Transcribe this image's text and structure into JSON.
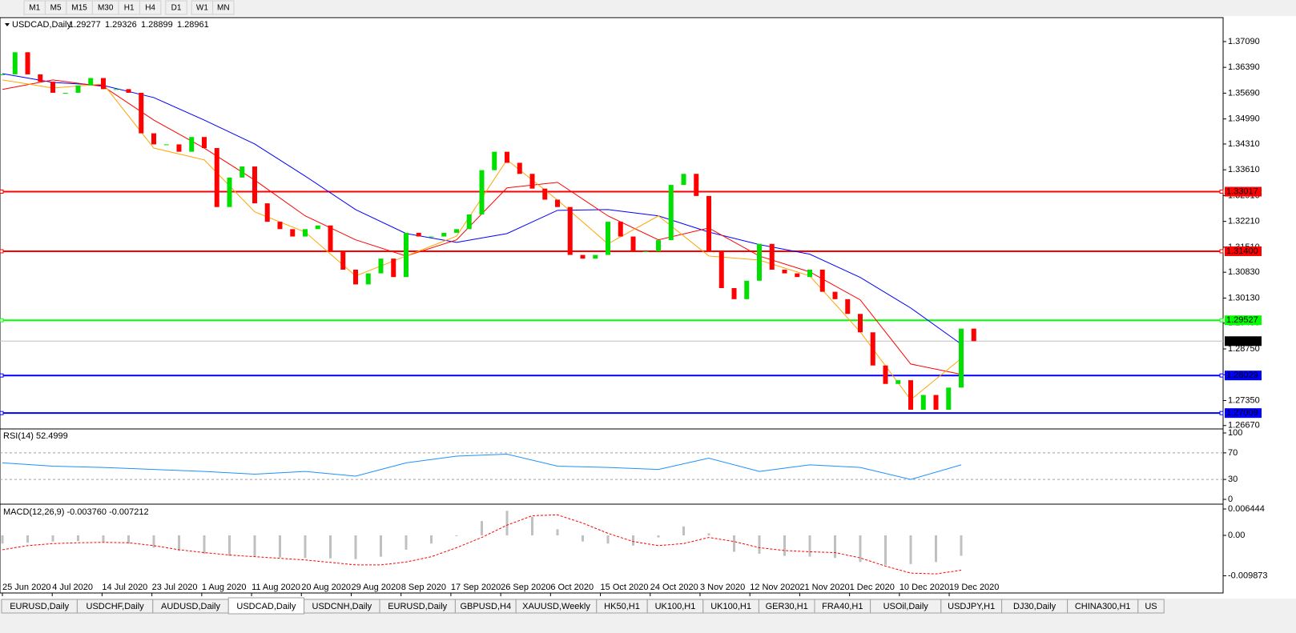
{
  "toolbar": [
    "M1",
    "M5",
    "M15",
    "M30",
    "H1",
    "H4",
    "D1",
    "W1",
    "MN"
  ],
  "tabs": [
    "EURUSD,Daily",
    "USDCHF,Daily",
    "AUDUSD,Daily",
    "USDCAD,Daily",
    "USDCNH,Daily",
    "EURUSD,Daily",
    "GBPUSD,H4",
    "XAUUSD,Weekly",
    "HK50,H1",
    "UK100,H1",
    "UK100,H1",
    "GER30,H1",
    "FRA40,H1",
    "USOil,Daily",
    "USDJPY,H1",
    "DJ30,Daily",
    "CHINA300,H1",
    "US"
  ],
  "active_tab": 3,
  "chart_data": [
    {
      "type": "candlestick",
      "title": "USDCAD,Daily",
      "header_values": [
        1.29277,
        1.29326,
        1.28899,
        1.28961
      ],
      "up_color": "#00e000",
      "down_color": "#ff0000",
      "closes": [
        1.362,
        1.368,
        1.362,
        1.36,
        1.357,
        1.357,
        1.359,
        1.361,
        1.358,
        1.358,
        1.357,
        1.346,
        1.343,
        1.343,
        1.341,
        1.345,
        1.342,
        1.326,
        1.334,
        1.337,
        1.327,
        1.322,
        1.32,
        1.318,
        1.32,
        1.321,
        1.314,
        1.309,
        1.305,
        1.308,
        1.312,
        1.307,
        1.319,
        1.318,
        1.318,
        1.319,
        1.32,
        1.324,
        1.336,
        1.341,
        1.338,
        1.335,
        1.331,
        1.328,
        1.326,
        1.313,
        1.312,
        1.313,
        1.322,
        1.318,
        1.314,
        1.314,
        1.317,
        1.332,
        1.335,
        1.329,
        1.314,
        1.304,
        1.301,
        1.306,
        1.316,
        1.309,
        1.308,
        1.307,
        1.309,
        1.303,
        1.301,
        1.297,
        1.292,
        1.283,
        1.278,
        1.279,
        1.271,
        1.275,
        1.271,
        1.277,
        1.293,
        1.28961
      ],
      "ma": [
        {
          "color": "#0000ff",
          "x": [
            0,
            4,
            8,
            12,
            16,
            20,
            24,
            28,
            32,
            36,
            40,
            44,
            48,
            52,
            56,
            60,
            64,
            68,
            72,
            76
          ],
          "values": [
            1.3622,
            1.3598,
            1.359,
            1.3557,
            1.3496,
            1.3431,
            1.3344,
            1.3253,
            1.3188,
            1.3164,
            1.3188,
            1.3251,
            1.3253,
            1.3236,
            1.3192,
            1.3158,
            1.3132,
            1.3069,
            1.2986,
            1.2888
          ]
        },
        {
          "color": "#ff0000",
          "x": [
            0,
            4,
            8,
            12,
            16,
            20,
            24,
            28,
            32,
            36,
            40,
            44,
            48,
            52,
            56,
            60,
            64,
            68,
            72,
            76
          ],
          "values": [
            1.3579,
            1.3605,
            1.3587,
            1.3496,
            1.342,
            1.3333,
            1.3236,
            1.3171,
            1.3127,
            1.3171,
            1.3312,
            1.3327,
            1.3236,
            1.3171,
            1.3203,
            1.3127,
            1.3084,
            1.3008,
            1.2834,
            1.2806
          ]
        },
        {
          "color": "#ffa500",
          "x": [
            0,
            4,
            8,
            12,
            16,
            20,
            24,
            28,
            32,
            36,
            40,
            44,
            48,
            52,
            56,
            60,
            64,
            68,
            72,
            76
          ],
          "values": [
            1.3605,
            1.3583,
            1.3594,
            1.342,
            1.3388,
            1.3247,
            1.3192,
            1.3073,
            1.3127,
            1.3181,
            1.3388,
            1.3279,
            1.316,
            1.3236,
            1.3127,
            1.3116,
            1.3073,
            1.2921,
            1.2737,
            1.2849
          ]
        }
      ],
      "levels": [
        {
          "value": 1.33017,
          "color": "#ff0000"
        },
        {
          "value": 1.314,
          "label": "1.31400",
          "color": "#ff0000"
        },
        {
          "value": 1.29527,
          "color": "#00ff00"
        },
        {
          "value": 1.28961,
          "color": "#000000"
        },
        {
          "value": 1.28029,
          "color": "#0000ff"
        },
        {
          "value": 1.27009,
          "color": "#0000ff"
        }
      ],
      "ylim": [
        1.266,
        1.3774
      ],
      "yticks": [
        {
          "value": 1.3709,
          "label": "1.37090"
        },
        {
          "value": 1.3639,
          "label": "1.36390"
        },
        {
          "value": 1.3569,
          "label": "1.35690"
        },
        {
          "value": 1.3499,
          "label": "1.34990"
        },
        {
          "value": 1.3431,
          "label": "1.34310"
        },
        {
          "value": 1.3361,
          "label": "1.33610"
        },
        {
          "value": 1.3291,
          "label": "1.32910"
        },
        {
          "value": 1.3221,
          "label": "1.32210"
        },
        {
          "value": 1.3151,
          "label": "1.31510"
        },
        {
          "value": 1.3083,
          "label": "1.30830"
        },
        {
          "value": 1.3013,
          "label": "1.30130"
        },
        {
          "value": 1.2945,
          "label": "1.29450"
        },
        {
          "value": 1.2875,
          "label": "1.28750"
        },
        {
          "value": 1.2805,
          "label": "1.28050"
        },
        {
          "value": 1.2735,
          "label": "1.27350"
        },
        {
          "value": 1.2667,
          "label": "1.26670"
        }
      ],
      "xticks": [
        {
          "value": 0,
          "label": "25 Jun 2020"
        },
        {
          "value": 3.95,
          "label": "4 Jul 2020"
        },
        {
          "value": 7.9,
          "label": "14 Jul 2020"
        },
        {
          "value": 11.85,
          "label": "23 Jul 2020"
        },
        {
          "value": 15.8,
          "label": "1 Aug 2020"
        },
        {
          "value": 19.75,
          "label": "11 Aug 2020"
        },
        {
          "value": 23.7,
          "label": "20 Aug 2020"
        },
        {
          "value": 27.65,
          "label": "29 Aug 2020"
        },
        {
          "value": 31.6,
          "label": "8 Sep 2020"
        },
        {
          "value": 35.55,
          "label": "17 Sep 2020"
        },
        {
          "value": 39.5,
          "label": "26 Sep 2020"
        },
        {
          "value": 43.45,
          "label": "6 Oct 2020"
        },
        {
          "value": 47.4,
          "label": "15 Oct 2020"
        },
        {
          "value": 51.35,
          "label": "24 Oct 2020"
        },
        {
          "value": 55.3,
          "label": "3 Nov 2020"
        },
        {
          "value": 59.25,
          "label": "12 Nov 2020"
        },
        {
          "value": 63.2,
          "label": "21 Nov 2020"
        },
        {
          "value": 67.15,
          "label": "1 Dec 2020"
        },
        {
          "value": 71.1,
          "label": "10 Dec 2020"
        },
        {
          "value": 75.05,
          "label": "19 Dec 2020"
        }
      ]
    },
    {
      "type": "line",
      "title": "RSI(14) 52.4999",
      "color": "#1e90ff",
      "x": [
        0,
        4,
        8,
        12,
        16,
        20,
        24,
        28,
        32,
        36,
        40,
        44,
        48,
        52,
        56,
        60,
        64,
        68,
        72,
        76
      ],
      "values": [
        55,
        50,
        48,
        45,
        42,
        38,
        42,
        35,
        55,
        65,
        68,
        50,
        48,
        45,
        62,
        42,
        52,
        48,
        30,
        52
      ],
      "levels": [
        70,
        30
      ],
      "ylim": [
        -4.8,
        104.8
      ],
      "yticks": [
        100,
        70,
        30,
        0
      ]
    },
    {
      "type": "macd",
      "title": "MACD(12,26,9) -0.003760 -0.007212",
      "color": "#c0c0c0",
      "signal_color": "#ff0000",
      "x": [
        0,
        2,
        4,
        6,
        8,
        10,
        12,
        14,
        16,
        18,
        20,
        22,
        24,
        26,
        28,
        30,
        32,
        34,
        36,
        38,
        40,
        42,
        44,
        46,
        48,
        50,
        52,
        54,
        56,
        58,
        60,
        62,
        64,
        66,
        68,
        70,
        72,
        74,
        76
      ],
      "values": [
        -0.002,
        -0.0018,
        -0.0015,
        -0.0014,
        -0.0016,
        -0.002,
        -0.003,
        -0.0038,
        -0.0045,
        -0.005,
        -0.0052,
        -0.0054,
        -0.0055,
        -0.0056,
        -0.0058,
        -0.0052,
        -0.0035,
        -0.002,
        0.0,
        0.0035,
        0.006,
        0.0045,
        0.0015,
        -0.0015,
        -0.002,
        -0.0025,
        -0.0005,
        0.0022,
        0.0005,
        -0.004,
        -0.0045,
        -0.005,
        -0.0052,
        -0.0055,
        -0.0065,
        -0.0072,
        -0.007,
        -0.0065,
        -0.005
      ],
      "signal": [
        -0.0035,
        -0.0025,
        -0.002,
        -0.0018,
        -0.0017,
        -0.0018,
        -0.0025,
        -0.0035,
        -0.0042,
        -0.0048,
        -0.0052,
        -0.0056,
        -0.006,
        -0.0066,
        -0.0072,
        -0.0072,
        -0.0065,
        -0.0052,
        -0.003,
        -0.0005,
        0.0025,
        0.0048,
        0.005,
        0.003,
        0.0005,
        -0.0015,
        -0.0025,
        -0.002,
        -0.0005,
        -0.0015,
        -0.003,
        -0.0037,
        -0.004,
        -0.0042,
        -0.0055,
        -0.0075,
        -0.0092,
        -0.0094,
        -0.0085
      ],
      "ylim": [
        -0.01406,
        0.00723
      ],
      "yticks": [
        0.006444,
        {
          "value": 0,
          "label": "0.00"
        },
        -0.009873
      ]
    }
  ]
}
